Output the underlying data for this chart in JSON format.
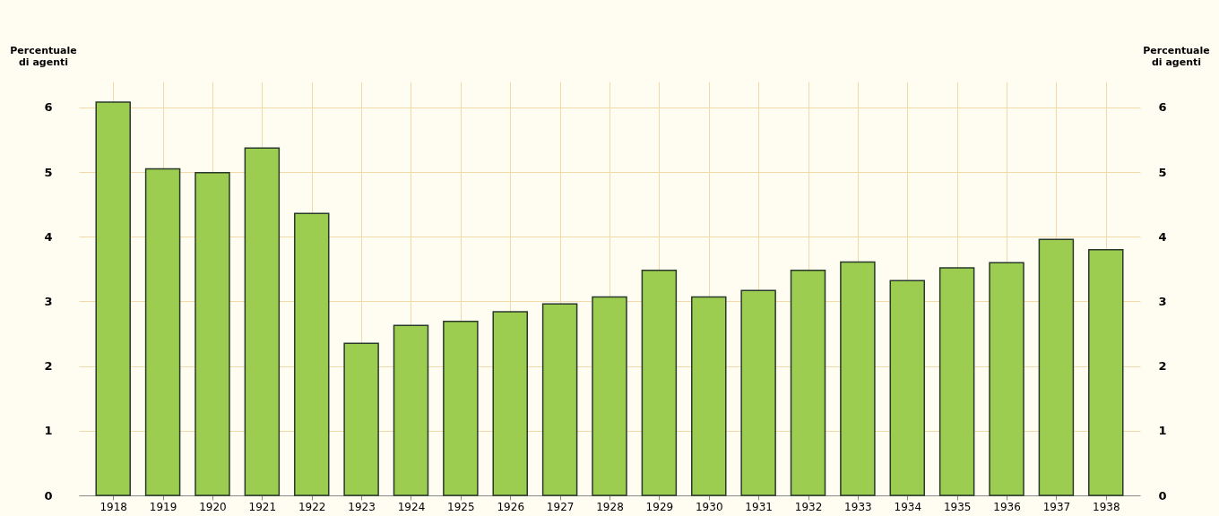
{
  "chart_data": {
    "type": "bar",
    "ylabel": "Percentuale di agenti",
    "y2label": "Percentuale di agenti",
    "categories": [
      "1918",
      "1919",
      "1920",
      "1921",
      "1922",
      "1923",
      "1924",
      "1925",
      "1926",
      "1927",
      "1928",
      "1929",
      "1930",
      "1931",
      "1932",
      "1933",
      "1934",
      "1935",
      "1936",
      "1937",
      "1938"
    ],
    "values": [
      6.08,
      5.05,
      4.99,
      5.37,
      4.36,
      2.35,
      2.63,
      2.69,
      2.84,
      2.96,
      3.07,
      3.48,
      3.07,
      3.17,
      3.48,
      3.61,
      3.32,
      3.52,
      3.6,
      3.96,
      3.8
    ],
    "color": "#9ccc50",
    "ylim": [
      0,
      6.4
    ],
    "yticks": [
      0,
      1,
      2,
      3,
      4,
      5,
      6
    ],
    "y2lim": [
      0,
      6.4
    ],
    "y2ticks": [
      0,
      1,
      2,
      3,
      4,
      5,
      6
    ],
    "grid": true
  }
}
